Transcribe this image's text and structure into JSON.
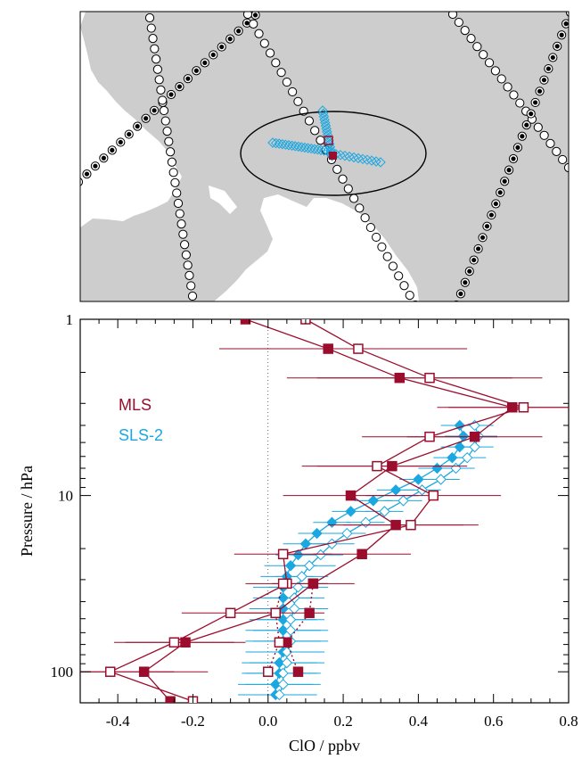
{
  "colors": {
    "mls": "#9b0d2c",
    "sls": "#1ba7e0",
    "land": "#cdcdcd",
    "track": "#000000"
  },
  "map_panel": {
    "icons": [
      "land-silhouette",
      "satellite-track-dots",
      "ellipse-outline"
    ]
  },
  "chart_data": {
    "type": "scatter",
    "title": "",
    "xlabel": "ClO / ppbv",
    "ylabel": "Pressure / hPa",
    "xlim": [
      -0.5,
      0.8
    ],
    "ylim": [
      150,
      1
    ],
    "yscale": "log",
    "x_ticks": [
      -0.4,
      -0.2,
      0.0,
      0.2,
      0.4,
      0.6,
      0.8
    ],
    "x_tick_labels": [
      "-0.4",
      "-0.2",
      "0.0",
      "0.2",
      "0.4",
      "0.6",
      "0.8"
    ],
    "y_ticks": [
      1,
      10,
      100
    ],
    "y_tick_labels": [
      "1",
      "10",
      "100"
    ],
    "legend": [
      "MLS",
      "SLS-2"
    ],
    "legend_position": "upper-left",
    "series": [
      {
        "name": "MLS",
        "marker": "square-filled",
        "pressure": [
          1.0,
          1.47,
          2.15,
          3.16,
          4.64,
          6.81,
          10.0,
          14.7,
          21.5,
          31.6,
          46.4,
          68.1,
          100.0,
          147.0
        ],
        "clo": [
          -0.06,
          0.16,
          0.35,
          0.65,
          0.55,
          0.33,
          0.22,
          0.34,
          0.25,
          0.12,
          0.02,
          -0.22,
          -0.33,
          -0.26
        ],
        "err": [
          0.0,
          0.29,
          0.3,
          0.2,
          0.18,
          0.2,
          0.18,
          0.18,
          0.13,
          0.11,
          0.13,
          0.16,
          0.17,
          0.0
        ]
      },
      {
        "name": "MLS",
        "marker": "square-open",
        "pressure": [
          1.0,
          1.47,
          2.15,
          3.16,
          4.64,
          6.81,
          10.0,
          14.7,
          21.5,
          31.6,
          46.4,
          68.1,
          100.0,
          147.0
        ],
        "clo": [
          0.1,
          0.24,
          0.43,
          0.68,
          0.43,
          0.29,
          0.44,
          0.38,
          0.04,
          0.05,
          -0.1,
          -0.25,
          -0.42,
          -0.2
        ],
        "err": [
          0.0,
          0.29,
          0.3,
          0.2,
          0.18,
          0.2,
          0.18,
          0.18,
          0.13,
          0.11,
          0.13,
          0.16,
          0.17,
          0.0
        ]
      },
      {
        "name": "MLS",
        "marker": "square-filled-dotted",
        "pressure": [
          31.6,
          46.4,
          68.1,
          100.0
        ],
        "clo": [
          0.12,
          0.11,
          0.05,
          0.08
        ]
      },
      {
        "name": "MLS",
        "marker": "square-open-dotted",
        "pressure": [
          31.6,
          46.4,
          68.1,
          100.0
        ],
        "clo": [
          0.04,
          0.02,
          0.03,
          0.0
        ]
      },
      {
        "name": "SLS-2",
        "marker": "diamond-filled",
        "pressure": [
          4.0,
          4.6,
          5.3,
          6.1,
          7.0,
          8.1,
          9.3,
          10.7,
          12.3,
          14.2,
          16.4,
          18.8,
          21.7,
          25.0,
          28.8,
          33.1,
          38.1,
          43.9,
          50.6,
          58.2,
          67.0,
          77.2,
          88.9,
          102.0,
          118.0,
          135.0
        ],
        "clo": [
          0.51,
          0.52,
          0.51,
          0.49,
          0.45,
          0.4,
          0.34,
          0.28,
          0.22,
          0.17,
          0.13,
          0.1,
          0.08,
          0.06,
          0.05,
          0.04,
          0.04,
          0.04,
          0.04,
          0.04,
          0.04,
          0.04,
          0.03,
          0.03,
          0.02,
          0.02
        ],
        "err": [
          0.05,
          0.05,
          0.05,
          0.05,
          0.05,
          0.05,
          0.05,
          0.05,
          0.05,
          0.05,
          0.05,
          0.06,
          0.06,
          0.07,
          0.07,
          0.08,
          0.08,
          0.09,
          0.09,
          0.1,
          0.1,
          0.1,
          0.1,
          0.1,
          0.1,
          0.1
        ]
      },
      {
        "name": "SLS-2",
        "marker": "diamond-open",
        "pressure": [
          4.0,
          4.6,
          5.3,
          6.1,
          7.0,
          8.1,
          9.3,
          10.7,
          12.3,
          14.2,
          16.4,
          18.8,
          21.7,
          25.0,
          28.8,
          33.1,
          38.1,
          43.9,
          50.6,
          58.2,
          67.0,
          77.2,
          88.9,
          102.0,
          118.0,
          135.0
        ],
        "clo": [
          0.55,
          0.56,
          0.55,
          0.53,
          0.5,
          0.46,
          0.41,
          0.36,
          0.31,
          0.26,
          0.21,
          0.17,
          0.14,
          0.11,
          0.09,
          0.08,
          0.07,
          0.07,
          0.06,
          0.06,
          0.06,
          0.05,
          0.05,
          0.04,
          0.04,
          0.03
        ],
        "err": [
          0.05,
          0.05,
          0.05,
          0.05,
          0.05,
          0.05,
          0.05,
          0.05,
          0.05,
          0.05,
          0.05,
          0.06,
          0.06,
          0.07,
          0.07,
          0.08,
          0.08,
          0.09,
          0.09,
          0.1,
          0.1,
          0.1,
          0.1,
          0.1,
          0.1,
          0.1
        ]
      }
    ]
  }
}
